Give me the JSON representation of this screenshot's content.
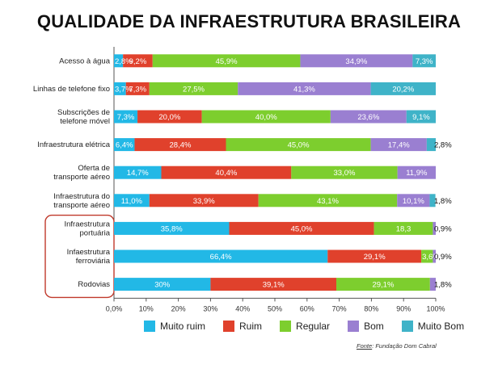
{
  "page_title": "QUALIDADE DA INFRAESTRUTURA BRASILEIRA",
  "source": {
    "label": "Fonte",
    "text": ": Fundação Dom Cabral"
  },
  "colors": {
    "Muito ruim": "#22b8e6",
    "Ruim": "#e0412c",
    "Regular": "#7dce2e",
    "Bom": "#9a7fd1",
    "Muito Bom": "#3fb3c8"
  },
  "chart_data": {
    "type": "bar",
    "orientation": "horizontal",
    "stacked": true,
    "title": "QUALIDADE DA INFRAESTRUTURA BRASILEIRA",
    "xlim": [
      0,
      100
    ],
    "xticks": [
      "0,0%",
      "10%",
      "20%",
      "30%",
      "40%",
      "50%",
      "60%",
      "70%",
      "80%",
      "90%",
      "100%"
    ],
    "legend_position": "bottom",
    "categories": [
      [
        "Acesso à água"
      ],
      [
        "Linhas de telefone fixo"
      ],
      [
        "Subscrições de",
        "telefone móvel"
      ],
      [
        "Infraestrutura elétrica"
      ],
      [
        "Oferta de",
        "transporte aéreo"
      ],
      [
        "Infraestrutura do",
        "transporte aéreo"
      ],
      [
        "Infraestrutura",
        "portuária"
      ],
      [
        "Infaestrutura",
        "ferroviária"
      ],
      [
        "Rodovias"
      ]
    ],
    "highlighted_categories": [
      6,
      7,
      8
    ],
    "series": [
      {
        "name": "Muito ruim",
        "values": [
          2.8,
          3.7,
          7.3,
          6.4,
          14.7,
          11.0,
          35.8,
          66.4,
          30.0
        ],
        "labels": [
          "2,8%",
          "3,7%",
          "7,3%",
          "6,4%",
          "14,7%",
          "11,0%",
          "35,8%",
          "66,4%",
          "30%"
        ]
      },
      {
        "name": "Ruim",
        "values": [
          9.2,
          7.3,
          20.0,
          28.4,
          40.4,
          33.9,
          45.0,
          29.1,
          39.1
        ],
        "labels": [
          "9,2%",
          "7,3%",
          "20,0%",
          "28,4%",
          "40,4%",
          "33,9%",
          "45,0%",
          "29,1%",
          "39,1%"
        ]
      },
      {
        "name": "Regular",
        "values": [
          45.9,
          27.5,
          40.0,
          45.0,
          33.0,
          43.1,
          18.3,
          3.6,
          29.1
        ],
        "labels": [
          "45,9%",
          "27,5%",
          "40,0%",
          "45,0%",
          "33,0%",
          "43,1%",
          "18,3",
          "3,6%",
          "29,1%"
        ]
      },
      {
        "name": "Bom",
        "values": [
          34.9,
          41.3,
          23.6,
          17.4,
          11.9,
          10.1,
          0.9,
          0.9,
          1.8
        ],
        "labels": [
          "34,9%",
          "41,3%",
          "23,6%",
          "17,4%",
          "11,9%",
          "10,1%",
          "0,9%",
          "0,9%",
          "1,8%"
        ]
      },
      {
        "name": "Muito Bom",
        "values": [
          7.3,
          20.2,
          9.1,
          2.8,
          0,
          1.8,
          0,
          0,
          0
        ],
        "labels": [
          "7,3%",
          "20,2%",
          "9,1%",
          "2,8%",
          "",
          "1,8%",
          "",
          "",
          ""
        ]
      }
    ]
  }
}
